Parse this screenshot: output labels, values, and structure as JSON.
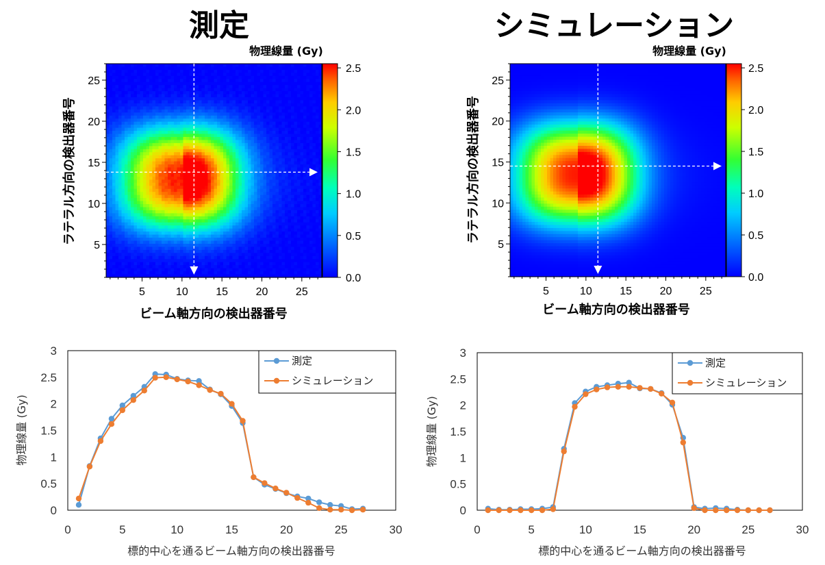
{
  "titles": {
    "left": "測定",
    "right": "シミュレーション"
  },
  "colors": {
    "measured": "#5B9BD5",
    "simulation": "#ED7D31",
    "heatmap_low": "#0000ff",
    "heatmap_high": "#ff0000"
  },
  "chart_data": [
    {
      "type": "heatmap",
      "title": "測定",
      "xlabel": "ビーム軸方向の検出器番号",
      "ylabel": "ラテラル方向の検出器番号",
      "colorbar_label": "物理線量 (Gy)",
      "x_range": [
        0.5,
        27.5
      ],
      "y_range": [
        1,
        27
      ],
      "x_ticks": [
        5,
        10,
        15,
        20,
        25
      ],
      "y_ticks": [
        5,
        10,
        15,
        20,
        25
      ],
      "colorbar_range": [
        0.0,
        2.55
      ],
      "colorbar_ticks": [
        "0.0",
        "0.5",
        "1.0",
        "1.5",
        "2.0",
        "2.5"
      ],
      "peak_center": {
        "x": 10,
        "y": 13
      },
      "profile_cut": {
        "x": 11.5,
        "y": 13.8
      }
    },
    {
      "type": "heatmap",
      "title": "シミュレーション",
      "xlabel": "ビーム軸方向の検出器番号",
      "ylabel": "ラテラル方向の検出器番号",
      "colorbar_label": "物理線量 (Gy)",
      "x_range": [
        0.5,
        27.5
      ],
      "y_range": [
        1,
        27
      ],
      "x_ticks": [
        5,
        10,
        15,
        20,
        25
      ],
      "y_ticks": [
        5,
        10,
        15,
        20,
        25
      ],
      "colorbar_range": [
        0.0,
        2.55
      ],
      "colorbar_ticks": [
        "0.0",
        "0.5",
        "1.0",
        "1.5",
        "2.0",
        "2.5"
      ],
      "peak_center": {
        "x": 9,
        "y": 13.5
      },
      "profile_cut": {
        "x": 11.5,
        "y": 14.5
      }
    },
    {
      "type": "line",
      "xlabel": "標的中心を通るビーム軸方向の検出器番号",
      "ylabel": "物理線量 (Gy)",
      "xlim": [
        0,
        30
      ],
      "ylim": [
        0,
        3
      ],
      "x_ticks": [
        0,
        5,
        10,
        15,
        20,
        25,
        30
      ],
      "y_ticks": [
        0,
        0.5,
        1,
        1.5,
        2,
        2.5,
        3
      ],
      "y_tick_labels": [
        "0",
        "0.5",
        "1",
        "1.5",
        "2",
        "2.5",
        "3"
      ],
      "legend_position": "top-right",
      "x": [
        1,
        2,
        3,
        4,
        5,
        6,
        7,
        8,
        9,
        10,
        11,
        12,
        13,
        14,
        15,
        16,
        17,
        18,
        19,
        20,
        21,
        22,
        23,
        24,
        25,
        26,
        27
      ],
      "series": [
        {
          "name": "測定",
          "values": [
            0.1,
            0.83,
            1.35,
            1.72,
            1.97,
            2.15,
            2.32,
            2.56,
            2.55,
            2.47,
            2.44,
            2.43,
            2.27,
            2.18,
            1.96,
            1.64,
            0.62,
            0.48,
            0.4,
            0.32,
            0.26,
            0.22,
            0.15,
            0.1,
            0.08,
            0.02,
            0.03
          ]
        },
        {
          "name": "シミュレーション",
          "values": [
            0.22,
            0.82,
            1.3,
            1.62,
            1.88,
            2.07,
            2.25,
            2.49,
            2.5,
            2.46,
            2.42,
            2.35,
            2.26,
            2.19,
            2.0,
            1.68,
            0.62,
            0.51,
            0.41,
            0.33,
            0.23,
            0.14,
            0.04,
            0.01,
            0.01,
            0.0,
            0.01
          ]
        }
      ]
    },
    {
      "type": "line",
      "xlabel": "標的中心を通るビーム軸方向の検出器番号",
      "ylabel": "物理線量 (Gy)",
      "xlim": [
        0,
        30
      ],
      "ylim": [
        0,
        3
      ],
      "x_ticks": [
        0,
        5,
        10,
        15,
        20,
        25,
        30
      ],
      "y_ticks": [
        0,
        0.5,
        1,
        1.5,
        2,
        2.5,
        3
      ],
      "y_tick_labels": [
        "0",
        "0.5",
        "1",
        "1.5",
        "2",
        "2.5",
        "3"
      ],
      "legend_position": "top-right",
      "x": [
        1,
        2,
        3,
        4,
        5,
        6,
        7,
        8,
        9,
        10,
        11,
        12,
        13,
        14,
        15,
        16,
        17,
        18,
        19,
        20,
        21,
        22,
        23,
        24,
        25,
        26,
        27
      ],
      "series": [
        {
          "name": "測定",
          "values": [
            0.03,
            0.01,
            0.01,
            0.02,
            0.02,
            0.03,
            0.06,
            1.17,
            2.04,
            2.26,
            2.35,
            2.38,
            2.41,
            2.43,
            2.32,
            2.31,
            2.23,
            2.01,
            1.38,
            0.06,
            0.03,
            0.04,
            0.03,
            0.01,
            0.0,
            0.0,
            0.0
          ]
        },
        {
          "name": "シミュレーション",
          "values": [
            0.0,
            0.0,
            0.0,
            0.0,
            0.0,
            0.0,
            0.02,
            1.12,
            1.97,
            2.21,
            2.3,
            2.34,
            2.35,
            2.35,
            2.33,
            2.31,
            2.22,
            2.05,
            1.29,
            0.04,
            0.0,
            0.0,
            0.0,
            0.0,
            0.0,
            0.0,
            0.0
          ]
        }
      ]
    }
  ]
}
